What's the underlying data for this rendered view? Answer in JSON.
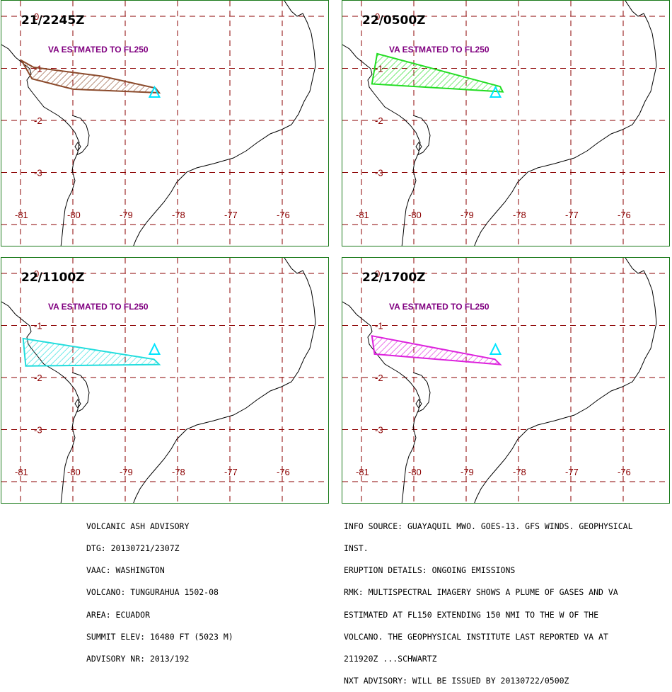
{
  "panels": [
    {
      "time": "21/2245Z",
      "va_label": "VA ESTMATED TO FL250",
      "color": "#8b4a2b",
      "polygon": [
        [
          -80.98,
          -0.85
        ],
        [
          -80.78,
          -1.2
        ],
        [
          -80.0,
          -1.4
        ],
        [
          -78.35,
          -1.47
        ],
        [
          -78.42,
          -1.38
        ],
        [
          -79.45,
          -1.15
        ],
        [
          -80.75,
          -0.98
        ]
      ]
    },
    {
      "time": "22/0500Z",
      "va_label": "VA ESTMATED TO FL250",
      "color": "#22dd22",
      "polygon": [
        [
          -80.7,
          -0.72
        ],
        [
          -80.8,
          -1.3
        ],
        [
          -78.3,
          -1.45
        ],
        [
          -78.35,
          -1.35
        ]
      ]
    },
    {
      "time": "22/1100Z",
      "va_label": "VA ESTMATED TO FL250",
      "color": "#22dddd",
      "polygon": [
        [
          -80.95,
          -1.25
        ],
        [
          -80.9,
          -1.78
        ],
        [
          -78.35,
          -1.75
        ],
        [
          -78.45,
          -1.65
        ]
      ]
    },
    {
      "time": "22/1700Z",
      "va_label": "VA ESTMATED TO FL250",
      "color": "#dd22dd",
      "polygon": [
        [
          -80.8,
          -1.2
        ],
        [
          -80.75,
          -1.55
        ],
        [
          -78.35,
          -1.75
        ],
        [
          -78.45,
          -1.65
        ]
      ]
    }
  ],
  "map": {
    "lon_labels": [
      "-81",
      "-80",
      "-79",
      "-78",
      "-77",
      "-76"
    ],
    "lat_labels": [
      "0",
      "-1",
      "-2",
      "-3"
    ],
    "volcano_lon": -78.44,
    "volcano_lat": -1.47,
    "grid_color": "#8b0000",
    "coast_color": "#000000"
  },
  "advisory_left": [
    "VOLCANIC ASH ADVISORY",
    "DTG: 20130721/2307Z",
    "VAAC: WASHINGTON",
    "VOLCANO: TUNGURAHUA 1502-08",
    "AREA: ECUADOR",
    "SUMMIT ELEV: 16480 FT (5023 M)",
    "ADVISORY NR: 2013/192"
  ],
  "advisory_right": [
    "INFO SOURCE: GUAYAQUIL MWO. GOES-13. GFS WINDS. GEOPHYSICAL",
    "INST.",
    "ERUPTION DETAILS: ONGOING EMISSIONS",
    "RMK: MULTISPECTRAL IMAGERY SHOWS A PLUME OF GASES AND VA",
    "ESTIMATED AT FL150 EXTENDING 150 NMI TO THE W OF THE",
    "VOLCANO. THE GEOPHYSICAL INSTITUTE LAST REPORTED VA AT",
    "211920Z ...SCHWARTZ",
    "NXT ADVISORY: WILL BE ISSUED BY 20130722/0500Z"
  ]
}
